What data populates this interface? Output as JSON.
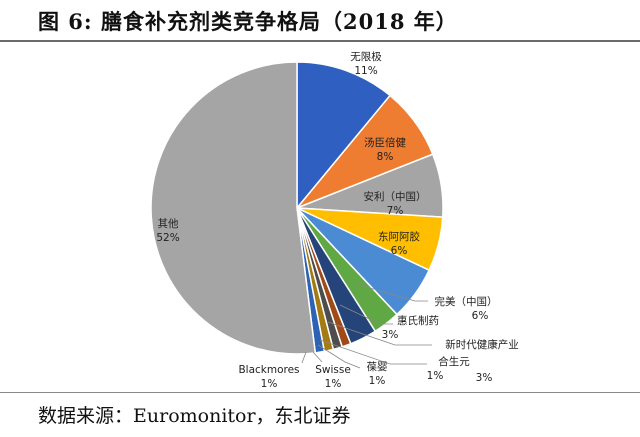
{
  "figure": {
    "title": "图  6:  膳食补充剂类竞争格局（2018 年）",
    "source": "数据来源：Euromonitor，东北证券"
  },
  "chart_data": {
    "type": "pie",
    "title": "膳食补充剂类竞争格局（2018 年）",
    "unit": "%",
    "slices": [
      {
        "label": "无限极",
        "value": 11,
        "value_text": "11%",
        "color": "#2f5fc0"
      },
      {
        "label": "汤臣倍健",
        "value": 8,
        "value_text": "8%",
        "color": "#ee7d31"
      },
      {
        "label": "安利（中国）",
        "value": 7,
        "value_text": "7%",
        "color": "#a5a5a5"
      },
      {
        "label": "东阿阿胶",
        "value": 6,
        "value_text": "6%",
        "color": "#ffbf00"
      },
      {
        "label": "完美（中国）",
        "value": 6,
        "value_text": "6%",
        "color": "#4a8bd4"
      },
      {
        "label": "惠氏制药",
        "value": 3,
        "value_text": "3%",
        "color": "#5fa844"
      },
      {
        "label": "新时代健康产业",
        "value": 3,
        "value_text": "3%",
        "color": "#25457a"
      },
      {
        "label": "合生元",
        "value": 1,
        "value_text": "1%",
        "color": "#a04a17"
      },
      {
        "label": "葆婴",
        "value": 1,
        "value_text": "1%",
        "color": "#4d4d4d"
      },
      {
        "label": "Swisse",
        "value": 1,
        "value_text": "1%",
        "color": "#a47a12"
      },
      {
        "label": "Blackmores",
        "value": 1,
        "value_text": "1%",
        "color": "#2c63b5"
      },
      {
        "label": "其他",
        "value": 52,
        "value_text": "52%",
        "color": "#a5a5a5"
      }
    ]
  }
}
